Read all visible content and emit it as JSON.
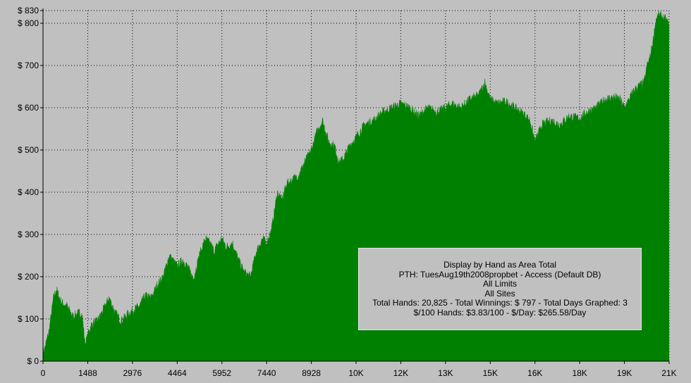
{
  "chart_data": {
    "type": "area",
    "title": "",
    "xlabel": "",
    "ylabel": "",
    "color": "#008000",
    "background": "#c0c0c0",
    "grid": true,
    "xlim": [
      0,
      20825
    ],
    "ylim": [
      0,
      830
    ],
    "y_ticks": [
      {
        "value": 0,
        "label": "$ 0"
      },
      {
        "value": 100,
        "label": "$ 100"
      },
      {
        "value": 200,
        "label": "$ 200"
      },
      {
        "value": 300,
        "label": "$ 300"
      },
      {
        "value": 400,
        "label": "$ 400"
      },
      {
        "value": 500,
        "label": "$ 500"
      },
      {
        "value": 600,
        "label": "$ 600"
      },
      {
        "value": 700,
        "label": "$ 700"
      },
      {
        "value": 800,
        "label": "$ 800"
      },
      {
        "value": 830,
        "label": "$ 830"
      }
    ],
    "x_ticks": [
      {
        "value": 0,
        "label": "0"
      },
      {
        "value": 1488,
        "label": "1488"
      },
      {
        "value": 2976,
        "label": "2976"
      },
      {
        "value": 4464,
        "label": "4464"
      },
      {
        "value": 5952,
        "label": "5952"
      },
      {
        "value": 7440,
        "label": "7440"
      },
      {
        "value": 8928,
        "label": "8928"
      },
      {
        "value": 10416,
        "label": "10K"
      },
      {
        "value": 11904,
        "label": "12K"
      },
      {
        "value": 13392,
        "label": "13K"
      },
      {
        "value": 14880,
        "label": "15K"
      },
      {
        "value": 16368,
        "label": "16K"
      },
      {
        "value": 17856,
        "label": "18K"
      },
      {
        "value": 19344,
        "label": "19K"
      },
      {
        "value": 20832,
        "label": "21K"
      }
    ],
    "series": [
      {
        "x": [
          0,
          200,
          350,
          450,
          600,
          800,
          1000,
          1200,
          1300,
          1400,
          1488,
          1600,
          1800,
          2000,
          2200,
          2400,
          2600,
          2800,
          2976,
          3200,
          3400,
          3600,
          3800,
          4000,
          4200,
          4464,
          4650,
          4800,
          5000,
          5200,
          5400,
          5550,
          5700,
          5800,
          5952,
          6100,
          6300,
          6500,
          6700,
          6900,
          7100,
          7300,
          7440,
          7600,
          7800,
          7950,
          8100,
          8300,
          8500,
          8700,
          8928,
          9100,
          9300,
          9500,
          9700,
          9850,
          10000,
          10200,
          10416,
          10700,
          11000,
          11300,
          11600,
          11904,
          12200,
          12500,
          12800,
          13100,
          13392,
          13600,
          13900,
          14200,
          14500,
          14700,
          14880,
          15100,
          15400,
          15700,
          16000,
          16200,
          16368,
          16600,
          16900,
          17200,
          17500,
          17856,
          18100,
          18400,
          18700,
          19000,
          19200,
          19344,
          19500,
          19650,
          19800,
          20000,
          20100,
          20200,
          20300,
          20400,
          20500,
          20600,
          20700,
          20825
        ],
        "y": [
          15,
          70,
          150,
          170,
          140,
          130,
          105,
          115,
          110,
          40,
          60,
          85,
          95,
          120,
          150,
          115,
          95,
          110,
          120,
          130,
          155,
          150,
          180,
          200,
          250,
          225,
          240,
          225,
          195,
          250,
          290,
          280,
          260,
          275,
          290,
          270,
          280,
          240,
          210,
          200,
          260,
          290,
          280,
          310,
          400,
          380,
          420,
          430,
          440,
          470,
          500,
          540,
          570,
          520,
          510,
          470,
          480,
          510,
          530,
          560,
          570,
          590,
          600,
          610,
          600,
          580,
          600,
          590,
          600,
          610,
          600,
          620,
          630,
          660,
          620,
          610,
          615,
          600,
          585,
          570,
          520,
          560,
          570,
          560,
          580,
          575,
          590,
          600,
          620,
          625,
          620,
          600,
          620,
          640,
          650,
          660,
          700,
          720,
          760,
          810,
          820,
          815,
          810,
          797
        ]
      }
    ]
  },
  "info": {
    "line1": "Display by Hand as Area Total",
    "line2": "PTH: TuesAug19th2008propbet - Access (Default DB)",
    "line3": "All Limits",
    "line4": "All Sites",
    "line5": "Total Hands: 20,825 - Total Winnings: $ 797 - Total Days Graphed: 3",
    "line6": "$/100 Hands: $3.83/100 - $/Day: $265.58/Day"
  }
}
